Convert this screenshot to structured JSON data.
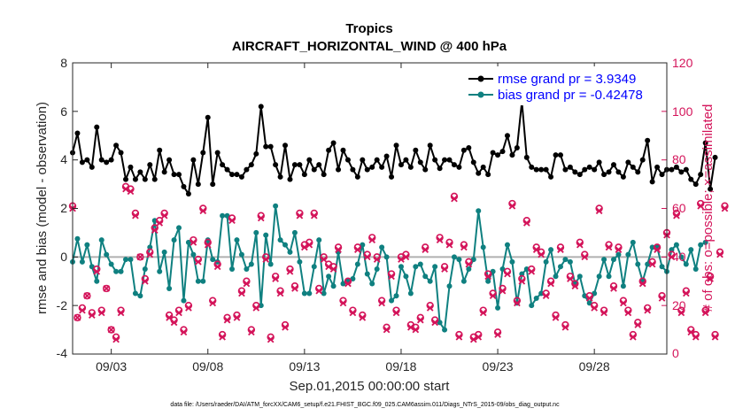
{
  "chart_data": {
    "type": "line",
    "title": "Tropics",
    "subtitle": "AIRCRAFT_HORIZONTAL_WIND @ 400 hPa",
    "xlabel": "Sep.01,2015 00:00:00 start",
    "ylabel": "rmse and bias (model - observation)",
    "ylabel_right": "# of obs: o=possible; ×=assimilated",
    "ylim": [
      -4,
      8
    ],
    "ylim_right": [
      0,
      120
    ],
    "xlim": [
      1.0,
      31.75
    ],
    "yticks": [
      "8",
      "6",
      "4",
      "2",
      "0",
      "-2",
      "-4"
    ],
    "yticks_right": [
      "120",
      "100",
      "80",
      "60",
      "40",
      "20",
      "0"
    ],
    "xticks": [
      {
        "x": 3,
        "label": "09/03"
      },
      {
        "x": 8,
        "label": "09/08"
      },
      {
        "x": 13,
        "label": "09/13"
      },
      {
        "x": 18,
        "label": "09/18"
      },
      {
        "x": 23,
        "label": "09/23"
      },
      {
        "x": 28,
        "label": "09/28"
      }
    ],
    "legend": [
      {
        "label": "rmse grand pr = 3.9349",
        "color": "#000000"
      },
      {
        "label": "bias grand pr = -0.42478",
        "color": "#0f8080"
      }
    ],
    "x_start": 1.0,
    "x_step": 0.25,
    "series": [
      {
        "name": "rmse",
        "color": "#000000",
        "values": [
          4.3,
          5.1,
          3.9,
          4.0,
          3.7,
          5.35,
          4.0,
          3.9,
          4.0,
          4.6,
          4.3,
          3.2,
          3.7,
          3.2,
          3.5,
          3.2,
          3.8,
          3.2,
          4.4,
          3.5,
          4.0,
          3.4,
          3.4,
          2.9,
          2.6,
          4.0,
          3.0,
          4.3,
          5.75,
          3.0,
          4.3,
          3.8,
          3.6,
          3.4,
          3.4,
          3.3,
          3.6,
          3.8,
          4.25,
          6.2,
          4.55,
          4.55,
          3.8,
          3.3,
          4.6,
          3.2,
          3.8,
          3.8,
          3.4,
          4.0,
          3.6,
          3.8,
          3.4,
          4.4,
          4.7,
          3.6,
          4.4,
          4.0,
          3.6,
          3.3,
          4.0,
          3.6,
          3.7,
          4.0,
          3.7,
          4.15,
          3.3,
          4.6,
          3.8,
          4.0,
          3.7,
          4.4,
          3.9,
          3.6,
          4.6,
          4.0,
          3.65,
          4.0,
          4.0,
          3.8,
          3.7,
          4.4,
          4.5,
          3.9,
          3.45,
          3.7,
          3.4,
          4.3,
          4.2,
          4.35,
          5.0,
          4.2,
          4.5,
          6.4,
          4.1,
          3.7,
          3.6,
          3.6,
          3.6,
          3.3,
          4.2,
          4.2,
          3.6,
          3.7,
          3.5,
          3.4,
          3.6,
          3.7,
          3.6,
          3.9,
          3.4,
          3.5,
          3.8,
          3.5,
          3.3,
          3.9,
          3.7,
          3.5,
          4.0,
          4.8,
          3.1,
          3.7,
          3.4,
          3.6,
          3.6,
          3.7,
          3.5,
          3.6,
          3.2,
          3.0,
          3.4,
          4.7,
          2.8,
          4.1
        ]
      },
      {
        "name": "bias",
        "color": "#0f8080",
        "values": [
          -0.2,
          0.75,
          -0.2,
          0.5,
          -0.4,
          -1.0,
          0.7,
          0.1,
          -0.3,
          -0.6,
          -0.6,
          -0.1,
          -0.1,
          -1.5,
          -1.6,
          -0.5,
          0.4,
          1.5,
          -0.6,
          0.2,
          -1.3,
          0.7,
          1.2,
          -1.8,
          0.6,
          0.1,
          -1.0,
          -1.0,
          0.7,
          -0.1,
          -0.2,
          1.7,
          1.7,
          -0.5,
          0.7,
          0.1,
          -0.5,
          -0.3,
          1.0,
          -2.0,
          0.9,
          -0.3,
          2.1,
          0.7,
          0.5,
          0.2,
          1.0,
          -0.2,
          -1.5,
          -1.5,
          -0.4,
          0.7,
          -1.5,
          -0.8,
          -1.2,
          0.2,
          -1.1,
          -1.0,
          -0.9,
          -0.3,
          0.5,
          -0.7,
          -1.1,
          -0.5,
          0.4,
          0.0,
          -1.8,
          -1.6,
          -0.4,
          -0.8,
          -1.5,
          -0.4,
          -0.3,
          -0.8,
          -1.0,
          -0.4,
          -2.7,
          -3.0,
          -1.2,
          0.0,
          -0.1,
          -1.0,
          -0.5,
          -0.1,
          1.9,
          0.4,
          -1.0,
          -0.6,
          -2.1,
          -0.5,
          0.5,
          -0.2,
          -1.9,
          -0.7,
          -0.5,
          -2.0,
          -1.7,
          -1.5,
          -0.2,
          0.3,
          -0.8,
          -0.4,
          -0.1,
          -0.2,
          -1.1,
          -0.8,
          -1.6,
          -1.9,
          -1.5,
          -0.8,
          -0.1,
          -0.8,
          -0.1,
          0.1,
          -1.2,
          0.1,
          0.6,
          -0.3,
          -1.0,
          -0.3,
          0.4,
          0.4,
          -0.4,
          -0.6,
          0.3,
          0.5,
          0.0,
          -0.3,
          0.3,
          -0.5,
          0.5,
          0.6
        ]
      },
      {
        "name": "possible",
        "color": "#d4145a",
        "marker": "o",
        "values": [
          61,
          15,
          19,
          24,
          17,
          35,
          18,
          27,
          10,
          7,
          18,
          69,
          68,
          58,
          40,
          31,
          42,
          52,
          55,
          58,
          16,
          14,
          18,
          10,
          20,
          47,
          39,
          60,
          46,
          22,
          37,
          8,
          15,
          56,
          16,
          26,
          30,
          10,
          20,
          57,
          40,
          7,
          32,
          26,
          12,
          35,
          28,
          58,
          45,
          46,
          58,
          27,
          40,
          37,
          36,
          44,
          22,
          30,
          18,
          44,
          16,
          41,
          48,
          40,
          22,
          11,
          33,
          18,
          40,
          41,
          12,
          11,
          15,
          44,
          20,
          14,
          48,
          36,
          46,
          65,
          8,
          45,
          38,
          7,
          8,
          18,
          33,
          25,
          9,
          27,
          34,
          62,
          22,
          31,
          55,
          35,
          44,
          42,
          25,
          30,
          16,
          44,
          12,
          32,
          29,
          46,
          41,
          24,
          20,
          60,
          18,
          45,
          28,
          44,
          22,
          18,
          8,
          13,
          30,
          19,
          38,
          44,
          24,
          50,
          41,
          58,
          18,
          26,
          10,
          8,
          62,
          18,
          32,
          8,
          42,
          61
        ]
      },
      {
        "name": "assimilated",
        "color": "#d4145a",
        "marker": "x",
        "values": [
          60,
          15,
          18,
          24,
          16,
          34,
          17,
          27,
          10,
          6,
          17,
          68,
          67,
          57,
          40,
          30,
          41,
          51,
          54,
          57,
          15,
          13,
          17,
          9,
          19,
          46,
          38,
          59,
          45,
          21,
          36,
          7,
          14,
          55,
          15,
          25,
          29,
          9,
          19,
          56,
          39,
          6,
          31,
          25,
          11,
          34,
          27,
          57,
          44,
          45,
          57,
          26,
          39,
          36,
          35,
          43,
          21,
          29,
          17,
          43,
          15,
          40,
          47,
          39,
          21,
          10,
          32,
          17,
          39,
          40,
          11,
          10,
          14,
          43,
          19,
          13,
          47,
          35,
          45,
          64,
          7,
          44,
          37,
          6,
          7,
          17,
          32,
          24,
          8,
          26,
          33,
          61,
          21,
          30,
          54,
          34,
          43,
          41,
          24,
          29,
          15,
          43,
          11,
          31,
          28,
          45,
          40,
          23,
          19,
          59,
          17,
          44,
          27,
          43,
          21,
          17,
          7,
          12,
          29,
          18,
          37,
          43,
          23,
          49,
          40,
          57,
          17,
          25,
          9,
          7,
          61,
          17,
          31,
          7,
          41,
          60
        ]
      }
    ]
  },
  "footer": "data file: /Users/raeder/DAI/ATM_forcXX/CAM6_setup/f.e21.FHIST_BGC.f09_025.CAM6assim.011/Diags_NTrS_2015-09/obs_diag_output.nc"
}
